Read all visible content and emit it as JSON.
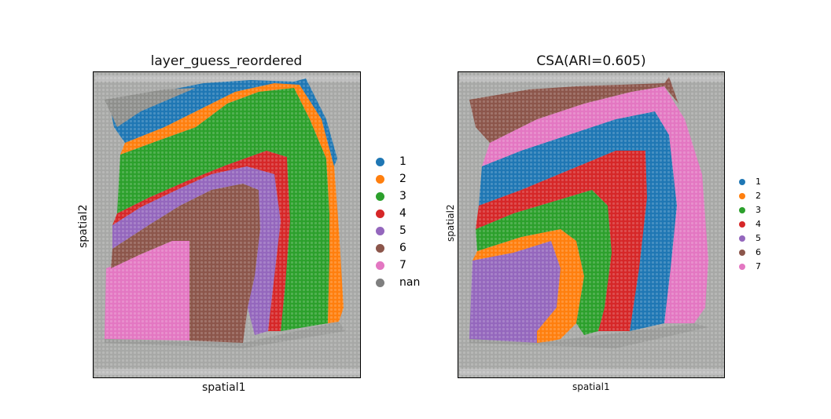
{
  "panels": [
    {
      "title": "layer_guess_reordered",
      "xlabel": "spatial1",
      "ylabel": "spatial2",
      "legend": [
        {
          "label": "1",
          "color": "#1f77b4"
        },
        {
          "label": "2",
          "color": "#ff7f0e"
        },
        {
          "label": "3",
          "color": "#2ca02c"
        },
        {
          "label": "4",
          "color": "#d62728"
        },
        {
          "label": "5",
          "color": "#9467bd"
        },
        {
          "label": "6",
          "color": "#8c564b"
        },
        {
          "label": "7",
          "color": "#e377c2"
        },
        {
          "label": "nan",
          "color": "#7f7f7f"
        }
      ]
    },
    {
      "title": "CSA(ARI=0.605)",
      "xlabel": "spatial1",
      "ylabel": "spatial2",
      "legend": [
        {
          "label": "1",
          "color": "#1f77b4"
        },
        {
          "label": "2",
          "color": "#ff7f0e"
        },
        {
          "label": "3",
          "color": "#2ca02c"
        },
        {
          "label": "4",
          "color": "#d62728"
        },
        {
          "label": "5",
          "color": "#9467bd"
        },
        {
          "label": "6",
          "color": "#8c564b"
        },
        {
          "label": "7",
          "color": "#e377c2"
        }
      ]
    }
  ]
}
